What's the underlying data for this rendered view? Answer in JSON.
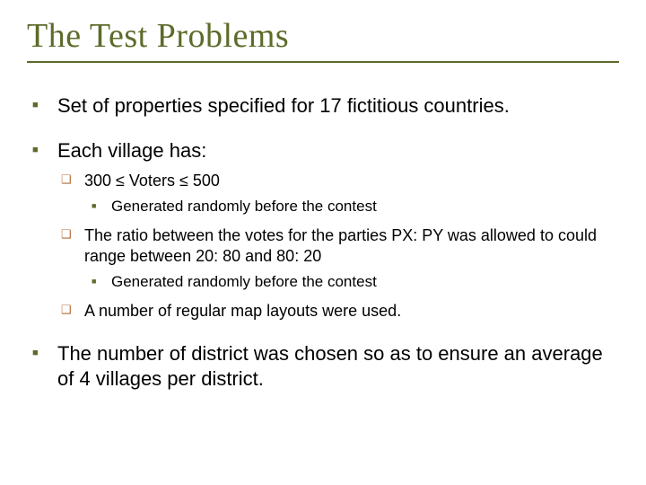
{
  "colors": {
    "title": "#5c6b2a",
    "underline": "#5c6b2a",
    "bullet_l1": "#5c6b2a",
    "bullet_l2": "#b56b3a",
    "bullet_l3": "#5c6b2a",
    "text": "#000000",
    "background": "#ffffff"
  },
  "typography": {
    "title_family": "Garamond, Times New Roman, serif",
    "title_size_pt": 28,
    "body_family": "Arial, Helvetica, sans-serif",
    "body_l1_size_pt": 17,
    "body_l2_size_pt": 14,
    "body_l3_size_pt": 13
  },
  "title": "The Test Problems",
  "bullets": {
    "b1": "Set of properties specified for 17 fictitious countries.",
    "b2": "Each village has:",
    "b2_1": "300 ≤ Voters ≤ 500",
    "b2_1_1": "Generated randomly before the contest",
    "b2_2": "The ratio between the votes for the parties PX: PY was allowed to could range between 20: 80 and 80: 20",
    "b2_2_1": "Generated randomly before the contest",
    "b2_3": "A number of regular map layouts were used.",
    "b3": "The number of district was chosen so as to ensure an average of 4 villages per district."
  }
}
